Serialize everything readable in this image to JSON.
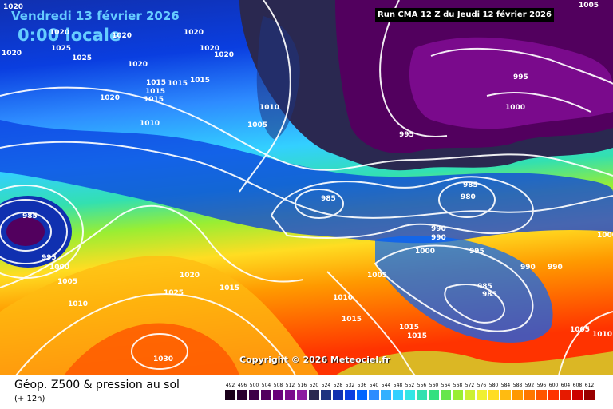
{
  "header": {
    "date": "Vendredi 13 février 2026",
    "time": "0:00 locale",
    "run_info": "Run CMA 12 Z du Jeudi 12 février 2026"
  },
  "copyright": "Copyright © 2026 Meteociel.fr",
  "footer": {
    "title": "Géop. Z500 & pression au sol",
    "subtitle": "(+ 12h)"
  },
  "legend": [
    {
      "value": "492",
      "color": "#1a001a"
    },
    {
      "value": "496",
      "color": "#2a0030"
    },
    {
      "value": "500",
      "color": "#3d0047"
    },
    {
      "value": "504",
      "color": "#52005e"
    },
    {
      "value": "508",
      "color": "#68007a"
    },
    {
      "value": "512",
      "color": "#7a0a8c"
    },
    {
      "value": "516",
      "color": "#8c1aa0"
    },
    {
      "value": "520",
      "color": "#2a2850"
    },
    {
      "value": "524",
      "color": "#1e3380"
    },
    {
      "value": "528",
      "color": "#1030b0"
    },
    {
      "value": "532",
      "color": "#0a3ee0"
    },
    {
      "value": "536",
      "color": "#0066ff"
    },
    {
      "value": "540",
      "color": "#2e8cff"
    },
    {
      "value": "544",
      "color": "#33b0ff"
    },
    {
      "value": "548",
      "color": "#33d0ff"
    },
    {
      "value": "552",
      "color": "#33e6e6"
    },
    {
      "value": "556",
      "color": "#33e0b0"
    },
    {
      "value": "560",
      "color": "#33e080"
    },
    {
      "value": "564",
      "color": "#66e64d"
    },
    {
      "value": "568",
      "color": "#99ee33"
    },
    {
      "value": "572",
      "color": "#ccf033"
    },
    {
      "value": "576",
      "color": "#f0f033"
    },
    {
      "value": "580",
      "color": "#ffdd22"
    },
    {
      "value": "584",
      "color": "#ffbb11"
    },
    {
      "value": "588",
      "color": "#ff9900"
    },
    {
      "value": "592",
      "color": "#ff7700"
    },
    {
      "value": "596",
      "color": "#ff5500"
    },
    {
      "value": "600",
      "color": "#ff3300"
    },
    {
      "value": "604",
      "color": "#e61a00"
    },
    {
      "value": "608",
      "color": "#cc0000"
    },
    {
      "value": "612",
      "color": "#990000"
    }
  ],
  "isobar_labels": [
    {
      "text": "1020"
    },
    {
      "text": "1020"
    },
    {
      "text": "1025"
    },
    {
      "text": "1020"
    },
    {
      "text": "1025"
    },
    {
      "text": "1020"
    },
    {
      "text": "1020"
    },
    {
      "text": "1020"
    },
    {
      "text": "1020"
    },
    {
      "text": "1020"
    },
    {
      "text": "1015"
    },
    {
      "text": "1015"
    },
    {
      "text": "1015"
    },
    {
      "text": "1015"
    },
    {
      "text": "1015"
    },
    {
      "text": "1020"
    },
    {
      "text": "1010"
    },
    {
      "text": "1010"
    },
    {
      "text": "1005"
    },
    {
      "text": "995"
    },
    {
      "text": "1000"
    },
    {
      "text": "995"
    },
    {
      "text": "1005"
    },
    {
      "text": "985"
    },
    {
      "text": "985"
    },
    {
      "text": "980"
    },
    {
      "text": "990"
    },
    {
      "text": "995"
    },
    {
      "text": "1000"
    },
    {
      "text": "990"
    },
    {
      "text": "990"
    },
    {
      "text": "1000"
    },
    {
      "text": "985"
    },
    {
      "text": "990"
    },
    {
      "text": "995"
    },
    {
      "text": "1000"
    },
    {
      "text": "1005"
    },
    {
      "text": "1010"
    },
    {
      "text": "1020"
    },
    {
      "text": "1015"
    },
    {
      "text": "1025"
    },
    {
      "text": "1005"
    },
    {
      "text": "1010"
    },
    {
      "text": "1015"
    },
    {
      "text": "1015"
    },
    {
      "text": "1015"
    },
    {
      "text": "985"
    },
    {
      "text": "985"
    },
    {
      "text": "1005"
    },
    {
      "text": "1010"
    },
    {
      "text": "1030"
    }
  ]
}
